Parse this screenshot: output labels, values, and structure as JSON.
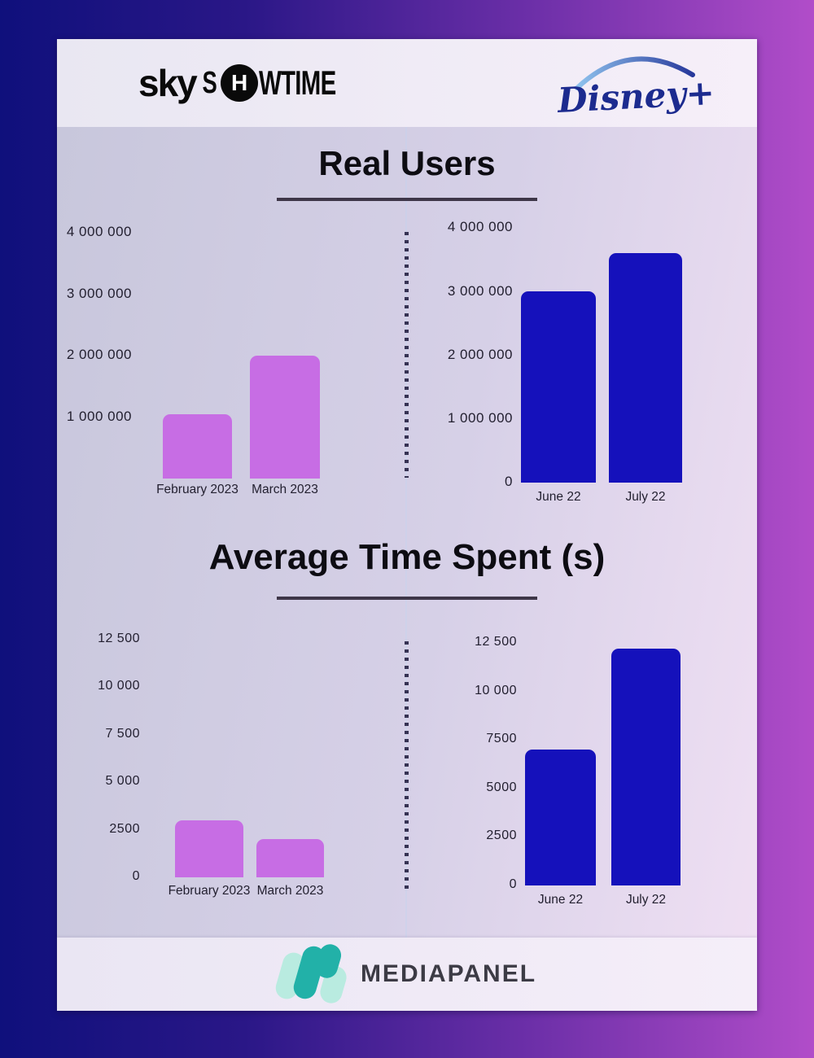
{
  "header": {
    "skyshowtime": {
      "sky": "sky",
      "s": "S",
      "h": "H",
      "rest": "WTIME"
    },
    "disney": {
      "name": "Disney",
      "plus": "+"
    }
  },
  "sections": [
    {
      "title": "Real Users"
    },
    {
      "title": "Average Time Spent (s)"
    }
  ],
  "footer": {
    "brand": "MEDIAPANEL"
  },
  "colors": {
    "skyshowtime_bar": "#c76de4",
    "disney_bar": "#1511bb",
    "background_left": "#0f107c",
    "background_right": "#b14dc9",
    "title_underline": "#3e3648",
    "dotted_divider": "#363253"
  },
  "chart_data": [
    {
      "type": "bar",
      "title": "Real Users",
      "provider": "SkyShowtime",
      "categories": [
        "February 2023",
        "March 2023"
      ],
      "values": [
        1050000,
        2000000
      ],
      "bar_color": "#c76de4",
      "ylim": [
        0,
        4000000
      ],
      "grid": false,
      "legend": "none",
      "yticks": [
        {
          "label": "4 000 000",
          "value": 4000000
        },
        {
          "label": "3 000 000",
          "value": 3000000
        },
        {
          "label": "2 000 000",
          "value": 2000000
        },
        {
          "label": "1 000 000",
          "value": 1000000
        }
      ]
    },
    {
      "type": "bar",
      "title": "Real Users",
      "provider": "Disney+",
      "categories": [
        "June 22",
        "July 22"
      ],
      "values": [
        3000000,
        3600000
      ],
      "bar_color": "#1511bb",
      "ylim": [
        0,
        4000000
      ],
      "grid": false,
      "legend": "none",
      "yticks": [
        {
          "label": "4 000 000",
          "value": 4000000
        },
        {
          "label": "3 000 000",
          "value": 3000000
        },
        {
          "label": "2 000 000",
          "value": 2000000
        },
        {
          "label": "1 000 000",
          "value": 1000000
        },
        {
          "label": "0",
          "value": 0
        }
      ]
    },
    {
      "type": "bar",
      "title": "Average Time Spent (s)",
      "provider": "SkyShowtime",
      "categories": [
        "February 2023",
        "March 2023"
      ],
      "values": [
        3000,
        2000
      ],
      "bar_color": "#c76de4",
      "ylim": [
        0,
        12500
      ],
      "grid": false,
      "legend": "none",
      "yticks": [
        {
          "label": "12 500",
          "value": 12500
        },
        {
          "label": "10 000",
          "value": 10000
        },
        {
          "label": "7 500",
          "value": 7500
        },
        {
          "label": "5 000",
          "value": 5000
        },
        {
          "label": "2500",
          "value": 2500
        },
        {
          "label": "0",
          "value": 0
        }
      ]
    },
    {
      "type": "bar",
      "title": "Average Time Spent (s)",
      "provider": "Disney+",
      "categories": [
        "June 22",
        "July 22"
      ],
      "values": [
        7000,
        12200
      ],
      "bar_color": "#1511bb",
      "ylim": [
        0,
        12500
      ],
      "grid": false,
      "legend": "none",
      "yticks": [
        {
          "label": "12 500",
          "value": 12500
        },
        {
          "label": "10 000",
          "value": 10000
        },
        {
          "label": "7500",
          "value": 7500
        },
        {
          "label": "5000",
          "value": 5000
        },
        {
          "label": "2500",
          "value": 2500
        },
        {
          "label": "0",
          "value": 0
        }
      ]
    }
  ]
}
